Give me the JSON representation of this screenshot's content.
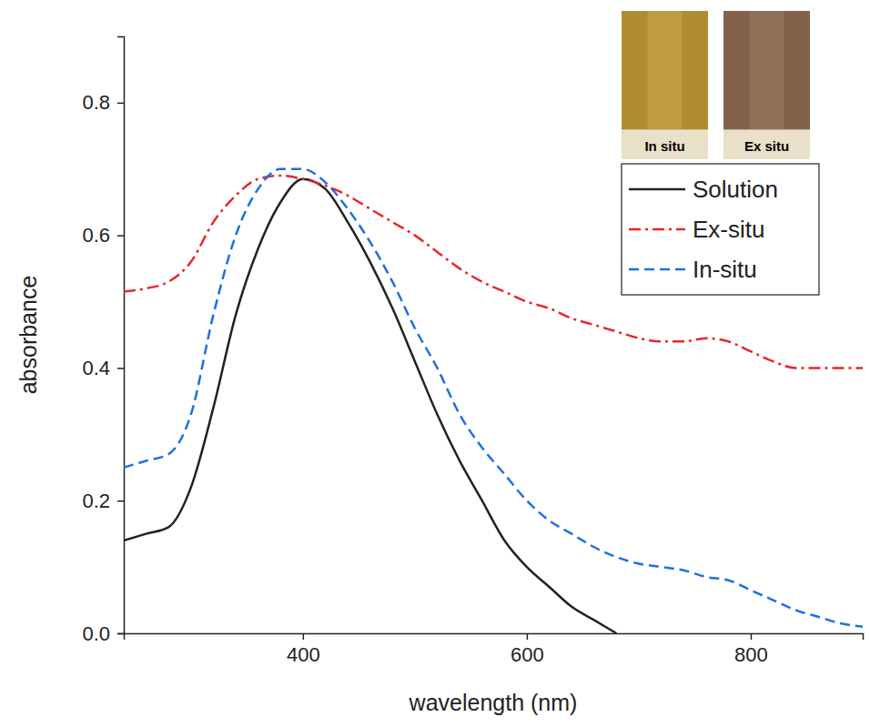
{
  "chart_data": {
    "type": "line",
    "x_label": "wavelength (nm)",
    "y_label": "absorbance",
    "x": [
      240,
      260,
      280,
      300,
      320,
      340,
      360,
      380,
      400,
      420,
      440,
      460,
      480,
      500,
      520,
      540,
      560,
      580,
      600,
      620,
      640,
      660,
      680,
      700,
      720,
      740,
      760,
      780,
      800,
      820,
      840,
      860,
      880,
      900
    ],
    "series": [
      {
        "name": "Solution",
        "color": "#222222",
        "line_style": "solid",
        "values": [
          0.14,
          0.15,
          0.16,
          0.22,
          0.34,
          0.48,
          0.58,
          0.65,
          0.685,
          0.67,
          0.62,
          0.56,
          0.49,
          0.41,
          0.33,
          0.26,
          0.2,
          0.14,
          0.1,
          0.07,
          0.04,
          0.02,
          0.0,
          null,
          null,
          null,
          null,
          null,
          null,
          null,
          null,
          null,
          null,
          null
        ]
      },
      {
        "name": "Ex-situ",
        "color": "#e8262a",
        "line_style": "dashdot",
        "values": [
          0.515,
          0.52,
          0.53,
          0.56,
          0.62,
          0.66,
          0.685,
          0.69,
          0.685,
          0.675,
          0.66,
          0.64,
          0.62,
          0.6,
          0.575,
          0.55,
          0.53,
          0.515,
          0.5,
          0.49,
          0.475,
          0.465,
          0.455,
          0.445,
          0.44,
          0.44,
          0.445,
          0.44,
          0.425,
          0.41,
          0.4,
          0.4,
          0.4,
          0.4
        ]
      },
      {
        "name": "In-situ",
        "color": "#1f6fe0",
        "line_style": "dashed",
        "values": [
          0.25,
          0.26,
          0.27,
          0.33,
          0.48,
          0.6,
          0.67,
          0.7,
          0.7,
          0.68,
          0.64,
          0.59,
          0.53,
          0.46,
          0.4,
          0.33,
          0.28,
          0.24,
          0.2,
          0.17,
          0.15,
          0.13,
          0.115,
          0.105,
          0.1,
          0.095,
          0.085,
          0.08,
          0.065,
          0.05,
          0.035,
          0.025,
          0.015,
          0.01
        ]
      }
    ],
    "xlim": [
      240,
      900
    ],
    "xticks": [
      400,
      600,
      800
    ],
    "ylim": [
      0,
      0.9
    ],
    "yticks": [
      {
        "value": 0,
        "label": "0.0"
      },
      0.2,
      0.4,
      0.6,
      0.8
    ],
    "grid": false,
    "legend": "upper right",
    "annotations": [
      "In situ",
      "Ex situ"
    ]
  }
}
